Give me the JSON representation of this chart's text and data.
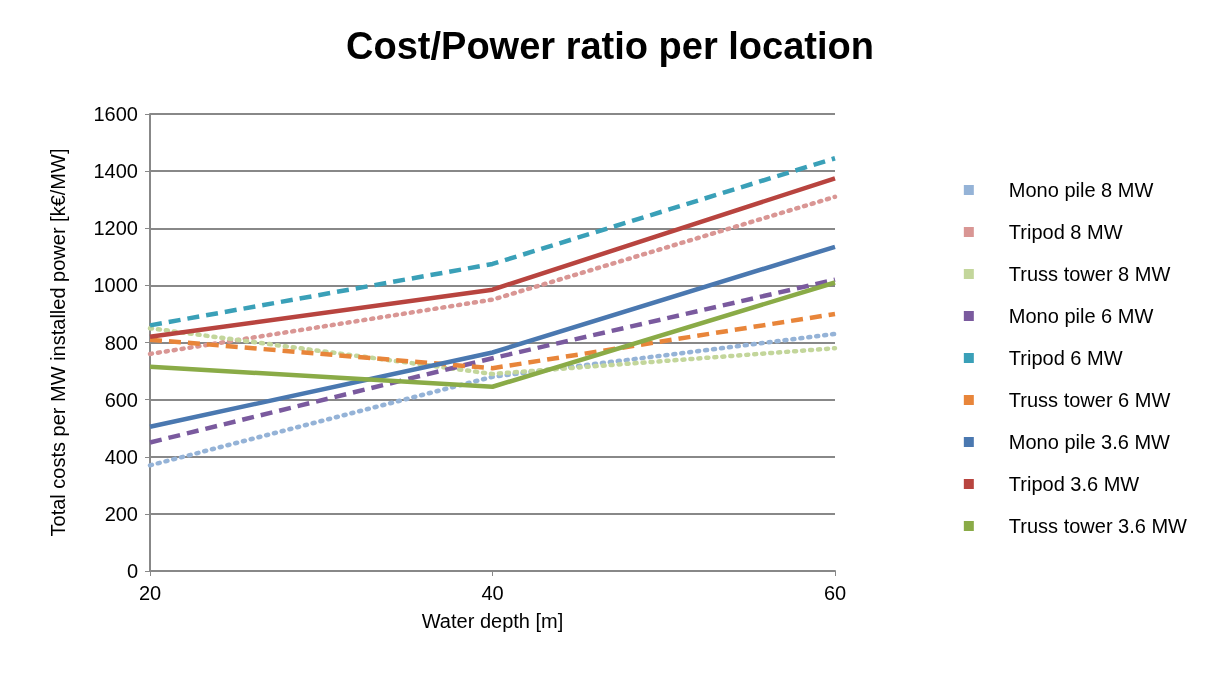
{
  "chart_data": {
    "type": "line",
    "title": "Cost/Power ratio per location",
    "xlabel": "Water depth [m]",
    "ylabel": "Total costs per MW installed power [k€/MW]",
    "x": [
      20,
      40,
      60
    ],
    "xlim": [
      20,
      60
    ],
    "xticks": [
      20,
      40,
      60
    ],
    "ylim": [
      0,
      1600
    ],
    "yticks": [
      0,
      200,
      400,
      600,
      800,
      1000,
      1200,
      1400,
      1600
    ],
    "grid": "y",
    "legend": "right",
    "marker": "none",
    "series": [
      {
        "name": "Mono pile 8 MW",
        "color": "#95b3d7",
        "line_style": "dotted",
        "values": [
          370,
          680,
          830
        ]
      },
      {
        "name": "Tripod 8 MW",
        "color": "#d99694",
        "line_style": "dotted",
        "values": [
          760,
          950,
          1310
        ]
      },
      {
        "name": "Truss tower 8 MW",
        "color": "#c3d69b",
        "line_style": "dotted",
        "values": [
          850,
          690,
          780
        ]
      },
      {
        "name": "Mono pile 6 MW",
        "color": "#7a5a9e",
        "line_style": "dashed",
        "values": [
          450,
          745,
          1020
        ]
      },
      {
        "name": "Tripod 6 MW",
        "color": "#3aa0b8",
        "line_style": "dashed",
        "values": [
          860,
          1075,
          1445
        ]
      },
      {
        "name": "Truss tower 6 MW",
        "color": "#e8853a",
        "line_style": "dashed",
        "values": [
          810,
          710,
          900
        ]
      },
      {
        "name": "Mono pile 3.6 MW",
        "color": "#4a78b0",
        "line_style": "solid",
        "values": [
          505,
          765,
          1135
        ]
      },
      {
        "name": "Tripod 3.6 MW",
        "color": "#b8443f",
        "line_style": "solid",
        "values": [
          820,
          985,
          1375
        ]
      },
      {
        "name": "Truss tower 3.6 MW",
        "color": "#8aab47",
        "line_style": "solid",
        "values": [
          715,
          645,
          1010
        ]
      }
    ]
  }
}
